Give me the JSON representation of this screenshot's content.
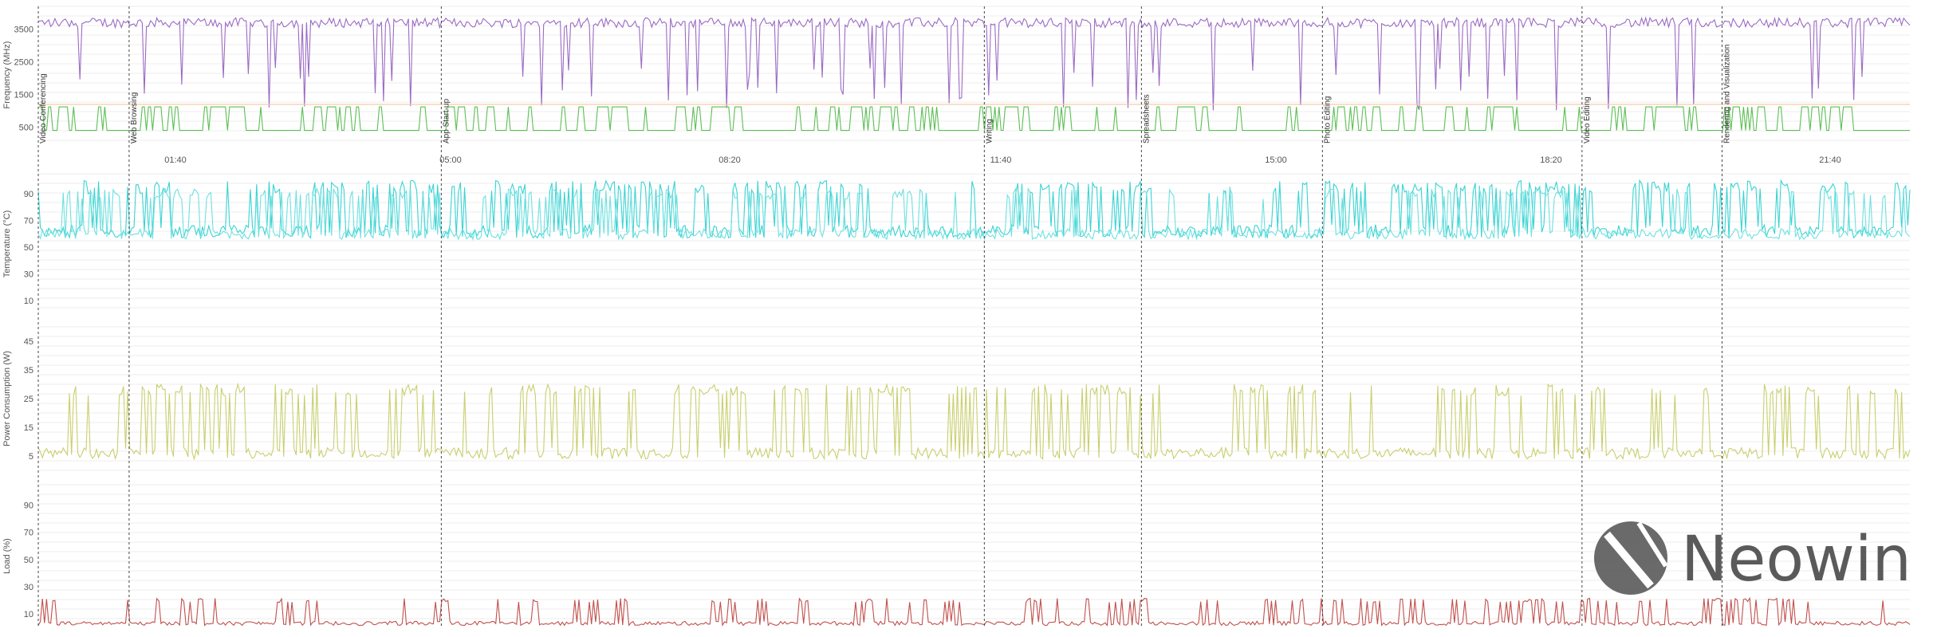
{
  "chart_data": {
    "type": "line",
    "x_ticks": [
      "01:40",
      "05:00",
      "08:20",
      "11:40",
      "15:00",
      "18:20",
      "21:40"
    ],
    "segments": [
      {
        "name": "Video Conferencing",
        "start": 0,
        "end": 133
      },
      {
        "name": "Web Browsing",
        "start": 133,
        "end": 590
      },
      {
        "name": "App Start-up",
        "start": 590,
        "end": 1385
      },
      {
        "name": "Writing",
        "start": 1385,
        "end": 1615
      },
      {
        "name": "Spreadsheets",
        "start": 1615,
        "end": 1880
      },
      {
        "name": "Photo Editing",
        "start": 1880,
        "end": 2260
      },
      {
        "name": "Video Editing",
        "start": 2260,
        "end": 2465
      },
      {
        "name": "Rendering and Visualization",
        "start": 2465,
        "end": 2740
      }
    ],
    "panels": [
      {
        "ylabel": "Frequency (MHz)",
        "yticks": [
          500,
          1500,
          2500,
          3500
        ],
        "ylim": [
          0,
          4200
        ],
        "series": [
          {
            "color": "#9b6bc4",
            "base": 3700,
            "spread": 300,
            "dips": 2700,
            "busy": 0.7
          },
          {
            "color": "#f2c79a",
            "base": 1200,
            "spread": 0,
            "dips": 0,
            "busy": 0
          },
          {
            "color": "#5cbf55",
            "base": 400,
            "spread": 0,
            "dips": 0,
            "busy": 0,
            "bursts": 1200
          }
        ]
      },
      {
        "ylabel": "Temperature (°C)",
        "yticks": [
          10,
          30,
          50,
          70,
          90
        ],
        "ylim": [
          0,
          105
        ],
        "series": [
          {
            "color": "#3ad3d3",
            "base": 62,
            "spread": 10,
            "peaks": 95,
            "busy": 0.6
          },
          {
            "color": "#6fe0e0",
            "base": 60,
            "spread": 8,
            "peaks": 90,
            "busy": 0.5
          }
        ]
      },
      {
        "ylabel": "Power Consumption (W)",
        "yticks": [
          5,
          15,
          25,
          35,
          45
        ],
        "ylim": [
          0,
          50
        ],
        "series": [
          {
            "color": "#c9cf6e",
            "base": 6,
            "spread": 4,
            "peaks": 28,
            "busy": 0.6
          }
        ]
      },
      {
        "ylabel": "Load (%)",
        "yticks": [
          10,
          30,
          50,
          70,
          90
        ],
        "ylim": [
          0,
          105
        ],
        "series": [
          {
            "color": "#c0504d",
            "base": 3,
            "spread": 3,
            "peaks": 20,
            "busy": 0.4
          }
        ]
      }
    ]
  },
  "watermark": {
    "text": "Neowin",
    "color": "#5a5a5a"
  }
}
